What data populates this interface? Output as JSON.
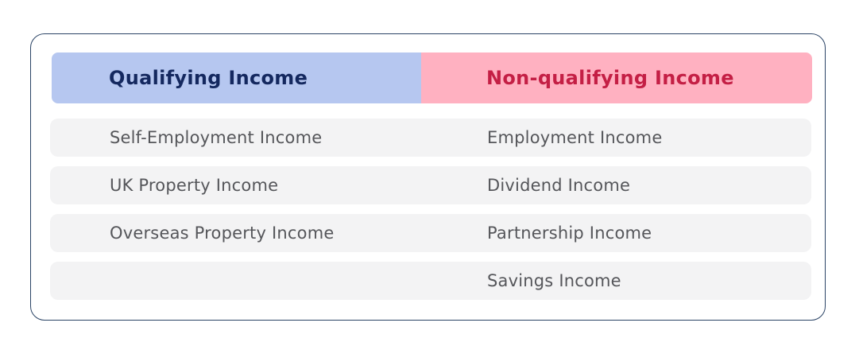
{
  "table": {
    "headers": [
      {
        "label": "Qualifying Income",
        "bg": "#b6c7f0",
        "text_color": "#14285f"
      },
      {
        "label": "Non-qualifying Income",
        "bg": "#ffb1c1",
        "text_color": "#c41f45"
      }
    ],
    "rows": [
      {
        "qualifying": "Self-Employment Income",
        "non_qualifying": "Employment Income"
      },
      {
        "qualifying": "UK Property Income",
        "non_qualifying": "Dividend Income"
      },
      {
        "qualifying": "Overseas Property Income",
        "non_qualifying": "Partnership Income"
      },
      {
        "qualifying": "",
        "non_qualifying": "Savings Income"
      }
    ],
    "colors": {
      "card_border": "#2a4365",
      "card_bg": "#ffffff",
      "row_bg": "#f3f3f4",
      "row_text": "#55565a"
    }
  }
}
